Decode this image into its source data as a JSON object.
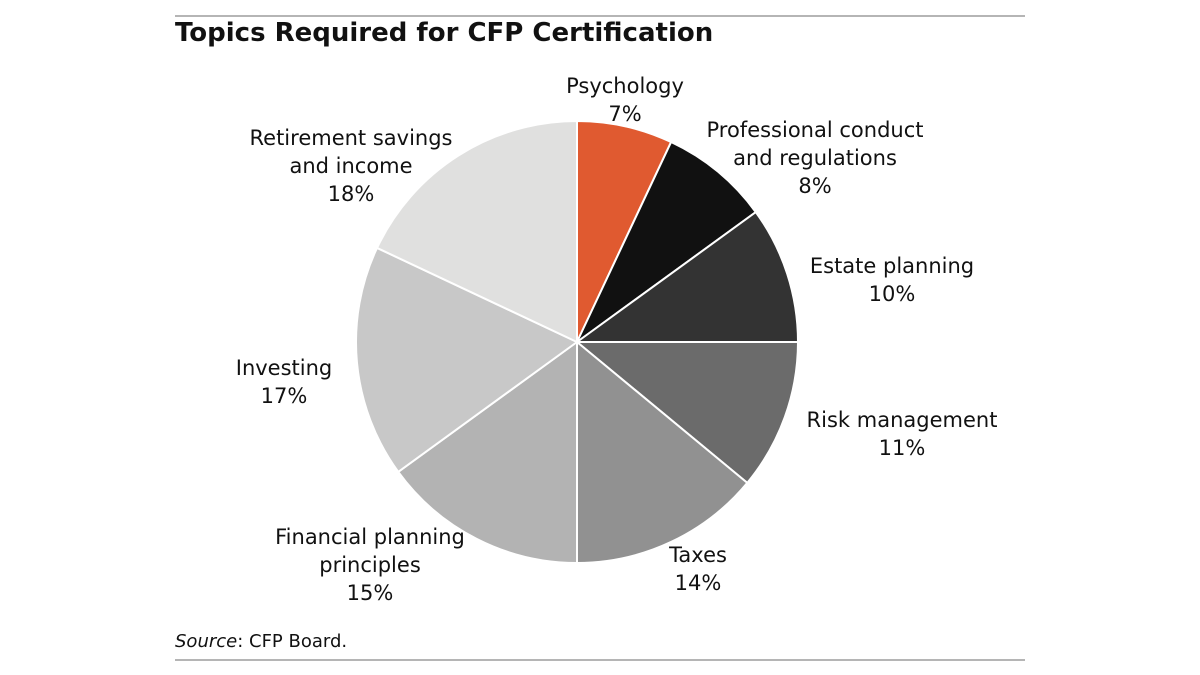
{
  "title": "Topics Required for CFP Certification",
  "source": {
    "label": "Source",
    "text": ": CFP Board."
  },
  "chart_data": {
    "type": "pie",
    "title": "Topics Required for CFP Certification",
    "start": "12 o'clock",
    "direction": "clockwise",
    "slices": [
      {
        "name_lines": [
          "Psychology"
        ],
        "value": 7,
        "label": "7%",
        "color": "#e05a30"
      },
      {
        "name_lines": [
          "Professional conduct",
          "and regulations"
        ],
        "value": 8,
        "label": "8%",
        "color": "#111111"
      },
      {
        "name_lines": [
          "Estate planning"
        ],
        "value": 10,
        "label": "10%",
        "color": "#333333"
      },
      {
        "name_lines": [
          "Risk management"
        ],
        "value": 11,
        "label": "11%",
        "color": "#6b6b6b"
      },
      {
        "name_lines": [
          "Taxes"
        ],
        "value": 14,
        "label": "14%",
        "color": "#919191"
      },
      {
        "name_lines": [
          "Financial planning",
          "principles"
        ],
        "value": 15,
        "label": "15%",
        "color": "#b3b3b3"
      },
      {
        "name_lines": [
          "Investing"
        ],
        "value": 17,
        "label": "17%",
        "color": "#c8c8c8"
      },
      {
        "name_lines": [
          "Retirement savings",
          "and income"
        ],
        "value": 18,
        "label": "18%",
        "color": "#e0e0df"
      }
    ]
  }
}
